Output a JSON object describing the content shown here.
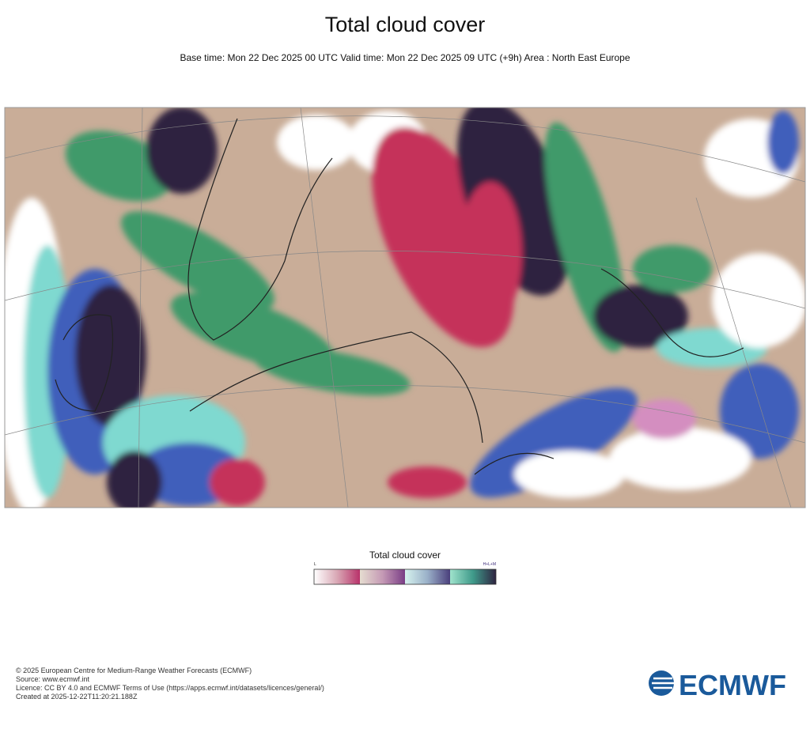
{
  "header": {
    "title": "Total cloud cover",
    "subtitle": "Base time: Mon 22 Dec 2025 00 UTC Valid time: Mon 22 Dec 2025 09 UTC (+9h) Area : North East Europe"
  },
  "legend": {
    "title": "Total cloud cover",
    "low_label": "L",
    "high_label": "H+L+M"
  },
  "footer": {
    "lines": [
      "© 2025 European Centre for Medium-Range Weather Forecasts (ECMWF)",
      "Source: www.ecmwf.int",
      "Licence: CC BY 4.0 and ECMWF Terms of Use (https://apps.ecmwf.int/datasets/licences/general/)",
      "Created at 2025-12-22T11:20:21.188Z"
    ]
  },
  "logo": {
    "text": "ECMWF"
  }
}
